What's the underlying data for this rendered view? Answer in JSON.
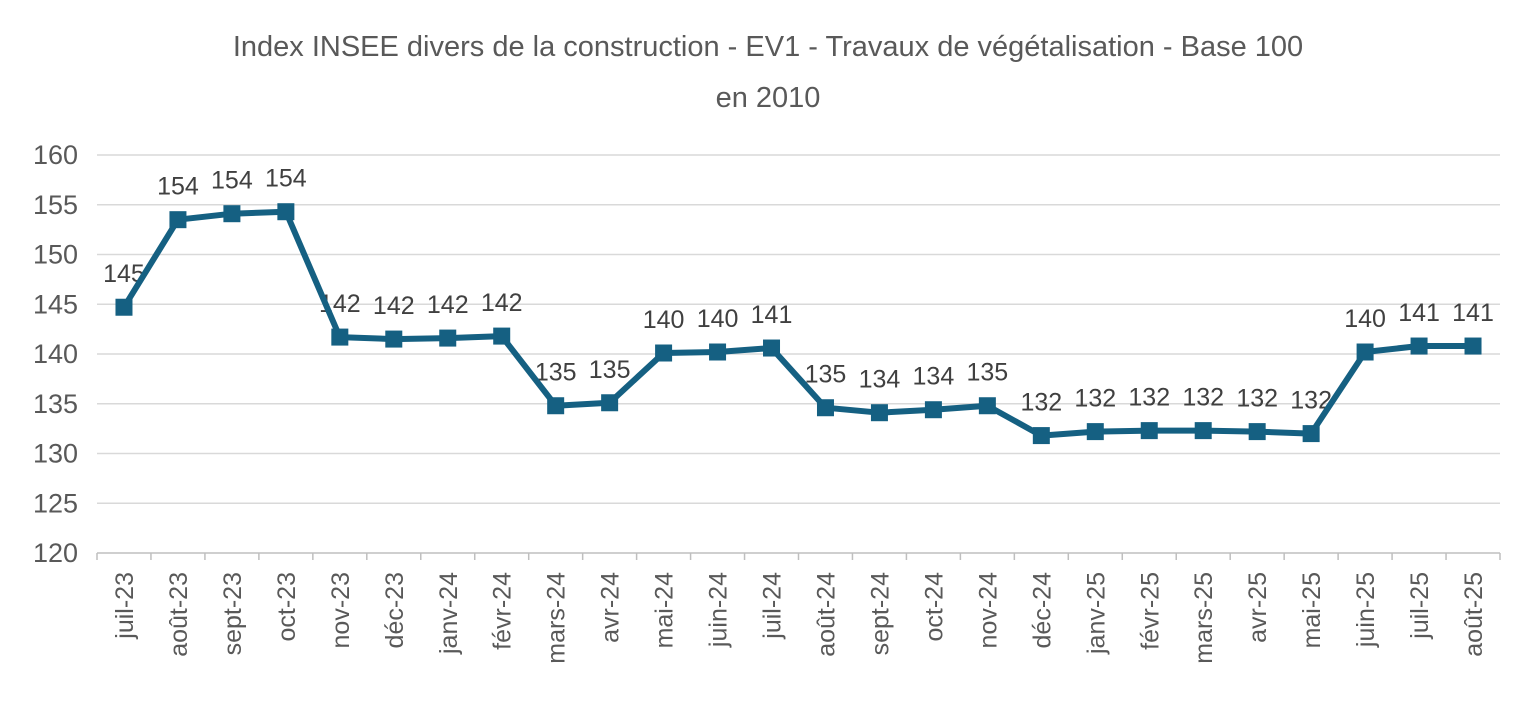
{
  "header": {
    "title_lines": [
      "Index INSEE divers de la construction - EV1 - Travaux de végétalisation - Base 100",
      "en 2010"
    ]
  },
  "chart_data": {
    "type": "line",
    "title": "Index INSEE divers de la construction - EV1 - Travaux de végétalisation - Base 100 en 2010",
    "categories": [
      "juil-23",
      "août-23",
      "sept-23",
      "oct-23",
      "nov-23",
      "déc-23",
      "janv-24",
      "févr-24",
      "mars-24",
      "avr-24",
      "mai-24",
      "juin-24",
      "juil-24",
      "août-24",
      "sept-24",
      "oct-24",
      "nov-24",
      "déc-24",
      "janv-25",
      "févr-25",
      "mars-25",
      "avr-25",
      "mai-25",
      "juin-25",
      "juil-25",
      "août-25"
    ],
    "series": [
      {
        "values": [
          145,
          154,
          154,
          154,
          142,
          142,
          142,
          142,
          135,
          135,
          140,
          140,
          141,
          135,
          134,
          134,
          135,
          132,
          132,
          132,
          132,
          132,
          132,
          140,
          141,
          141
        ],
        "values_precise": [
          144.7,
          153.5,
          154.1,
          154.3,
          141.7,
          141.5,
          141.6,
          141.8,
          134.8,
          135.1,
          140.1,
          140.2,
          140.6,
          134.6,
          134.1,
          134.4,
          134.8,
          131.8,
          132.2,
          132.3,
          132.3,
          132.2,
          132.0,
          140.2,
          140.8,
          140.8
        ],
        "point_labels": [
          "145",
          "154",
          "154",
          "154",
          "142",
          "142",
          "142",
          "142",
          "135",
          "135",
          "140",
          "140",
          "141",
          "135",
          "134",
          "134",
          "135",
          "132",
          "132",
          "132",
          "132",
          "132",
          "132",
          "140",
          "141",
          "141"
        ]
      }
    ],
    "xlabel": "",
    "ylabel": "",
    "ylim": [
      120,
      160
    ],
    "ytick_step": 5,
    "grid": "horizontal",
    "legend": "none",
    "marker_shape": "square",
    "colors": {
      "line": "#156082",
      "marker": "#156082",
      "grid": "#D9D9D9",
      "axis": "#BFBFBF",
      "axis_text": "#595959",
      "data_label_text": "#404040",
      "title_text": "#595959",
      "background": "#FFFFFF"
    }
  }
}
